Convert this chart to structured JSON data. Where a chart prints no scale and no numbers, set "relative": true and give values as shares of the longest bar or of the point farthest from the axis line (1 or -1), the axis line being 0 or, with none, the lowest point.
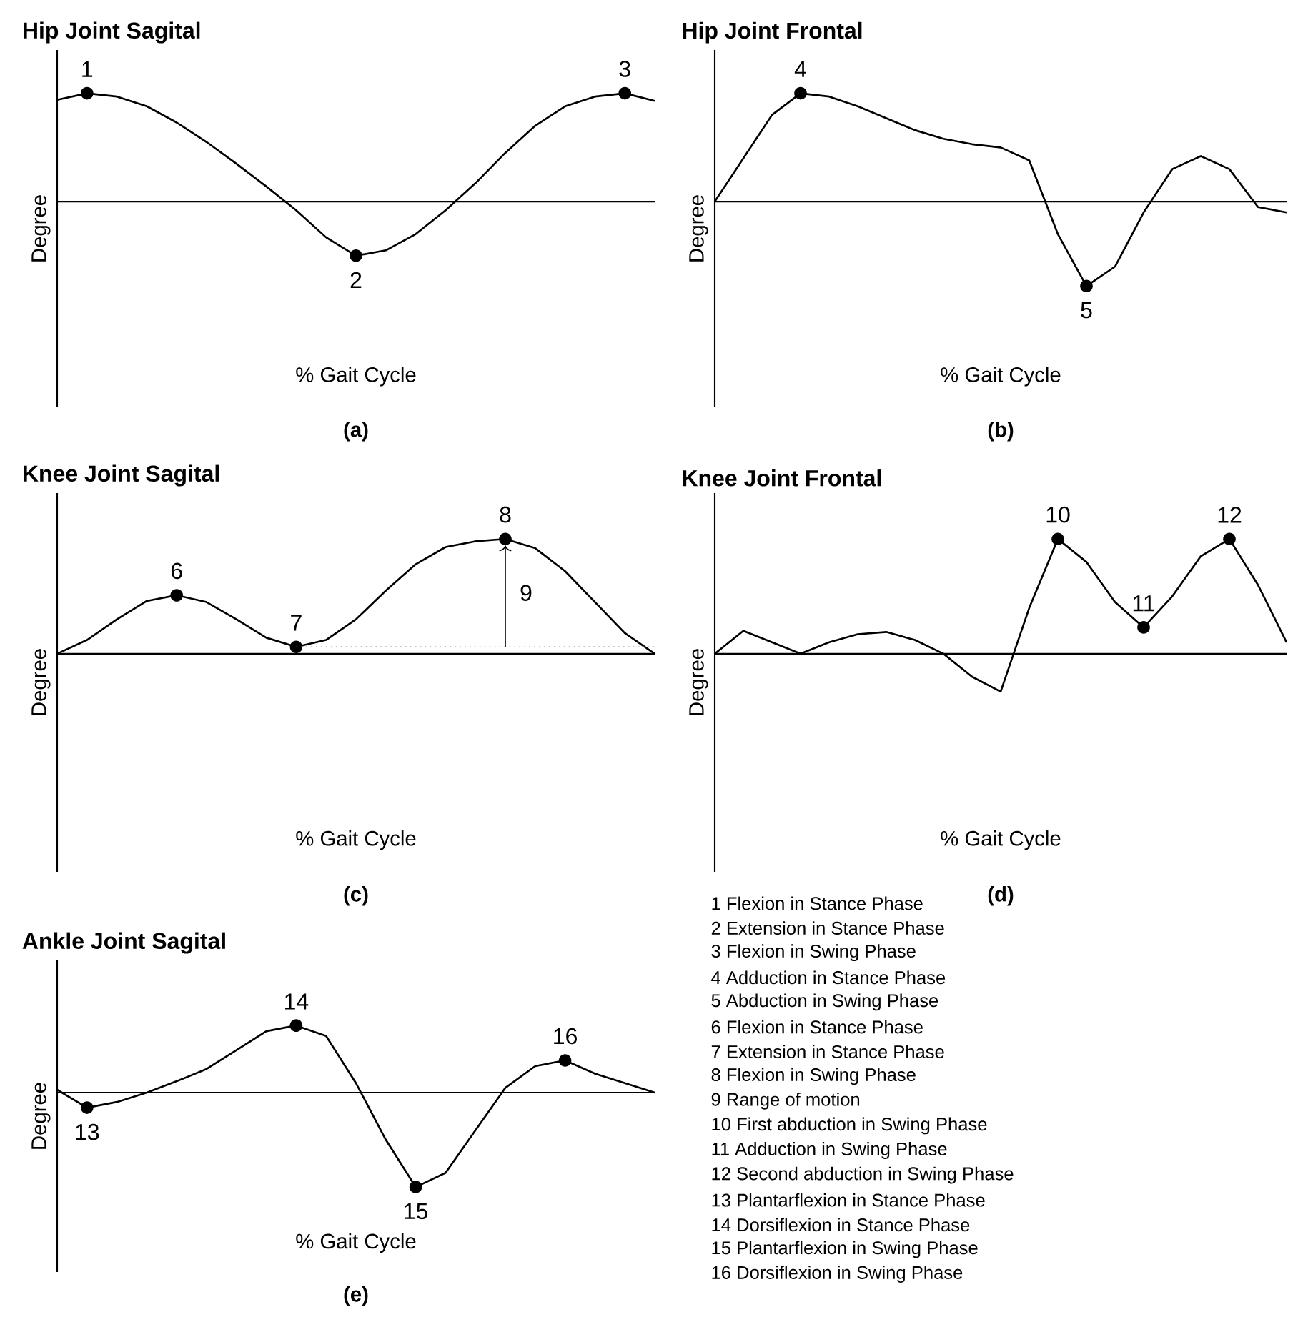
{
  "chart_data": [
    {
      "type": "line",
      "relative": true,
      "title": "Hip Joint Sagital",
      "subtitle": "(a)",
      "xlabel": "% Gait Cycle",
      "ylabel": "Degree",
      "categories": [
        null,
        null,
        null,
        null,
        null,
        null,
        null,
        null,
        null,
        null,
        null,
        null,
        null,
        null,
        null,
        null,
        null,
        null,
        null,
        null,
        null
      ],
      "series": [
        {
          "color": "#000000",
          "values": [
            0.94,
            1.0,
            0.97,
            0.88,
            0.73,
            0.55,
            0.35,
            0.14,
            -0.08,
            -0.33,
            -0.5,
            -0.45,
            -0.3,
            -0.08,
            0.17,
            0.45,
            0.7,
            0.88,
            0.97,
            1.0,
            0.93
          ]
        }
      ],
      "annotations": [
        {
          "text": "1",
          "y": 1.0
        },
        {
          "text": "2",
          "y": -0.5
        },
        {
          "text": "3",
          "y": 1.0
        }
      ]
    },
    {
      "type": "line",
      "relative": true,
      "title": "Hip Joint Frontal",
      "subtitle": "(b)",
      "xlabel": "% Gait Cycle",
      "ylabel": "Degree",
      "categories": [
        null,
        null,
        null,
        null,
        null,
        null,
        null,
        null,
        null,
        null,
        null,
        null,
        null,
        null,
        null,
        null,
        null,
        null,
        null,
        null,
        null
      ],
      "series": [
        {
          "color": "#000000",
          "values": [
            0,
            0.4,
            0.8,
            1.0,
            0.97,
            0.88,
            0.77,
            0.66,
            0.58,
            0.53,
            0.5,
            0.38,
            -0.3,
            -0.78,
            -0.6,
            -0.1,
            0.3,
            0.42,
            0.3,
            -0.05,
            -0.1
          ]
        }
      ],
      "annotations": [
        {
          "text": "4",
          "y": 1.0
        },
        {
          "text": "5",
          "y": -0.78
        }
      ]
    },
    {
      "type": "line",
      "relative": true,
      "title": "Knee Joint Sagital",
      "subtitle": "(c)",
      "xlabel": "% Gait Cycle",
      "ylabel": "Degree",
      "categories": [
        null,
        null,
        null,
        null,
        null,
        null,
        null,
        null,
        null,
        null,
        null,
        null,
        null,
        null,
        null,
        null,
        null,
        null,
        null,
        null,
        null
      ],
      "series": [
        {
          "color": "#000000",
          "values": [
            0,
            0.12,
            0.3,
            0.46,
            0.51,
            0.45,
            0.3,
            0.14,
            0.06,
            0.12,
            0.3,
            0.55,
            0.78,
            0.93,
            0.98,
            1.0,
            0.92,
            0.72,
            0.45,
            0.18,
            0
          ]
        }
      ],
      "annotations": [
        {
          "text": "6",
          "y": 0.51
        },
        {
          "text": "7",
          "y": 0.06
        },
        {
          "text": "8",
          "y": 1.0
        },
        "9"
      ]
    },
    {
      "type": "line",
      "relative": true,
      "title": "Knee Joint Frontal",
      "subtitle": "(d)",
      "xlabel": "% Gait Cycle",
      "ylabel": "Degree",
      "categories": [
        null,
        null,
        null,
        null,
        null,
        null,
        null,
        null,
        null,
        null,
        null,
        null,
        null,
        null,
        null,
        null,
        null,
        null,
        null,
        null,
        null
      ],
      "series": [
        {
          "color": "#000000",
          "values": [
            0,
            0.2,
            0.1,
            0,
            0.1,
            0.17,
            0.19,
            0.12,
            0,
            -0.2,
            -0.33,
            0.4,
            1.0,
            0.8,
            0.45,
            0.23,
            0.5,
            0.85,
            1.0,
            0.6,
            0.1
          ]
        }
      ],
      "annotations": [
        {
          "text": "10",
          "y": 1.0
        },
        {
          "text": "11",
          "y": 0.23
        },
        {
          "text": "12",
          "y": 1.0
        }
      ]
    },
    {
      "type": "line",
      "relative": true,
      "title": "Ankle Joint Sagital",
      "subtitle": "(e)",
      "xlabel": "% Gait Cycle",
      "ylabel": "Degree",
      "categories": [
        null,
        null,
        null,
        null,
        null,
        null,
        null,
        null,
        null,
        null,
        null,
        null,
        null,
        null,
        null,
        null,
        null,
        null,
        null,
        null,
        null
      ],
      "series": [
        {
          "color": "#000000",
          "values": [
            0.03,
            -0.16,
            -0.1,
            0,
            0.12,
            0.25,
            0.45,
            0.65,
            0.71,
            0.6,
            0.1,
            -0.5,
            -1.0,
            -0.85,
            -0.4,
            0.05,
            0.28,
            0.34,
            0.2,
            0.1,
            0
          ]
        }
      ],
      "annotations": [
        {
          "text": "13",
          "y": -0.16
        },
        {
          "text": "14",
          "y": 0.71
        },
        {
          "text": "15",
          "y": -1.0
        },
        {
          "text": "16",
          "y": 0.34
        }
      ]
    },
    {
      "type": "other",
      "annotations": [
        "1 Flexion in Stance Phase",
        "2 Extension in Stance Phase",
        "3 Flexion in Swing Phase",
        "4 Adduction in Stance Phase",
        "5 Abduction in Swing Phase",
        "6 Flexion in Stance Phase",
        "7 Extension in Stance Phase",
        "8 Flexion in Swing Phase",
        "9 Range of motion",
        "10 First abduction in Swing Phase",
        "11 Adduction in Swing Phase",
        "12 Second abduction in Swing Phase",
        "13 Plantarflexion in Stance Phase",
        "14 Dorsiflexion in Stance Phase",
        "15 Plantarflexion in Swing Phase",
        "16 Dorsiflexion in Swing Phase"
      ]
    }
  ]
}
